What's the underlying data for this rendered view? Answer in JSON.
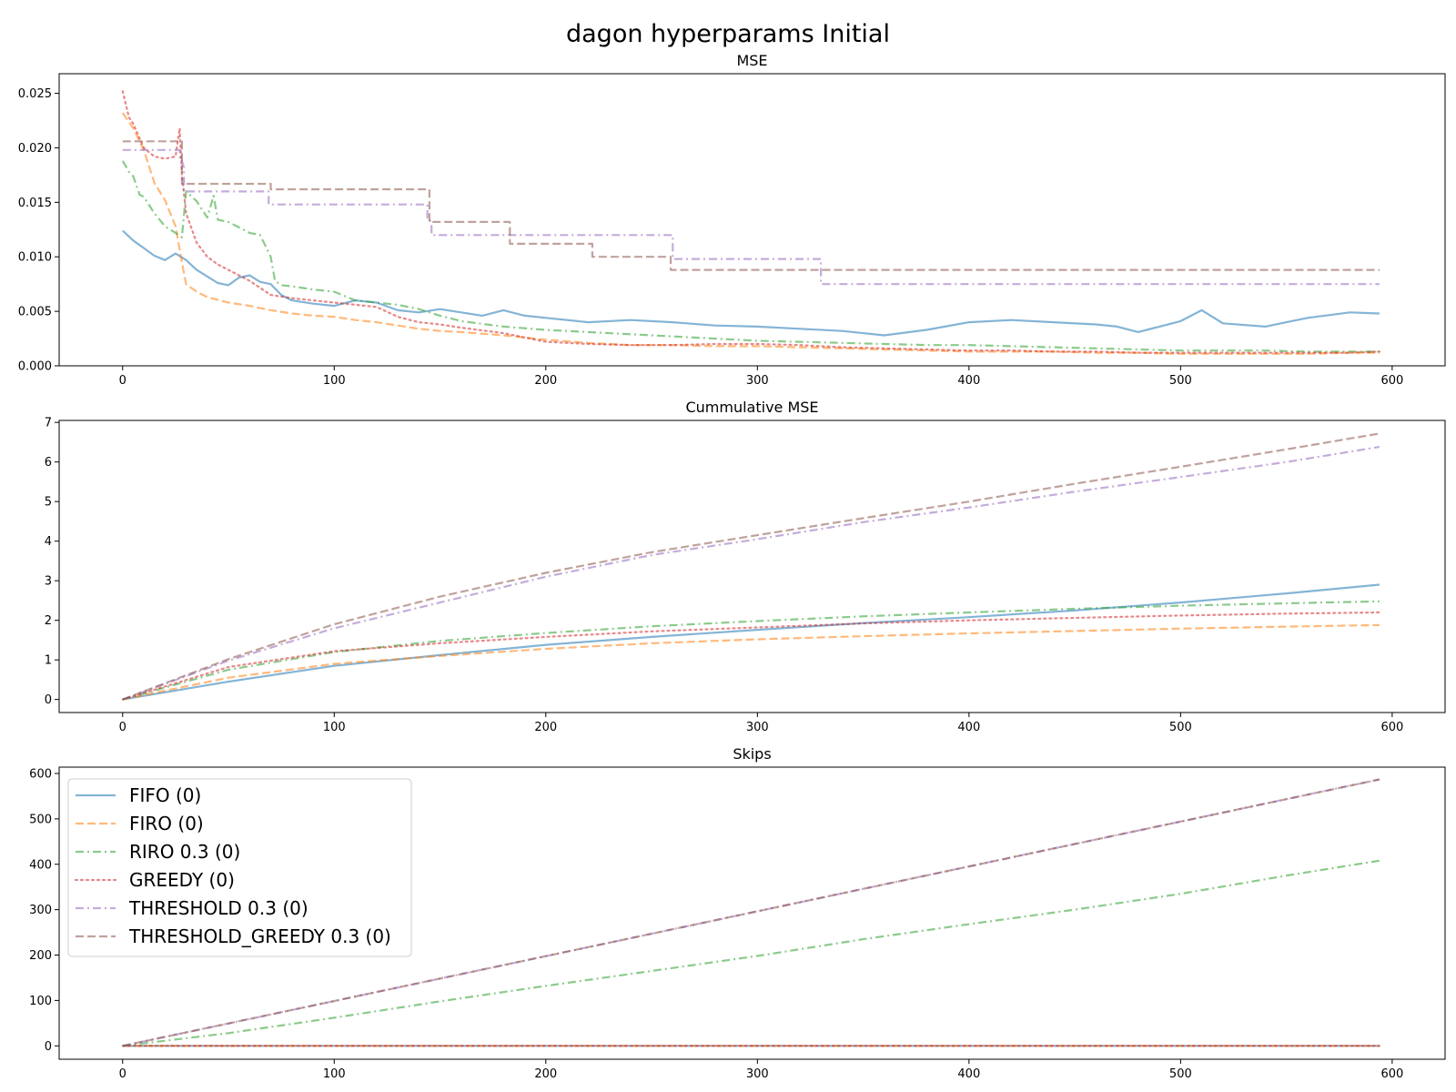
{
  "figure": {
    "title": "dagon hyperparams  Initial"
  },
  "colors": {
    "FIFO": "#1f77b4",
    "FIRO": "#ff7f0e",
    "RIRO": "#2ca02c",
    "GREEDY": "#d62728",
    "THRESHOLD": "#9467bd",
    "THRESHOLD_GREEDY": "#8c564b"
  },
  "chart_data": [
    {
      "type": "line",
      "title": "MSE",
      "xlabel": "",
      "ylabel": "",
      "xlim": [
        -30,
        625
      ],
      "ylim": [
        0,
        0.0268
      ],
      "xticks": [
        0,
        100,
        200,
        300,
        400,
        500,
        600
      ],
      "xtick_labels": [
        "0",
        "100",
        "200",
        "300",
        "400",
        "500",
        "600"
      ],
      "yticks": [
        0,
        0.005,
        0.01,
        0.015,
        0.02,
        0.025
      ],
      "ytick_labels": [
        "0.000",
        "0.005",
        "0.010",
        "0.015",
        "0.020",
        "0.025"
      ],
      "grid": false,
      "series": [
        {
          "name": "FIFO (0)",
          "style": "solid",
          "color_key": "FIFO",
          "x": [
            0,
            5,
            10,
            15,
            20,
            25,
            30,
            35,
            40,
            45,
            50,
            55,
            60,
            65,
            70,
            75,
            80,
            90,
            100,
            110,
            120,
            130,
            140,
            150,
            160,
            170,
            180,
            190,
            200,
            220,
            240,
            260,
            280,
            300,
            320,
            340,
            360,
            380,
            400,
            420,
            440,
            460,
            470,
            480,
            500,
            510,
            520,
            540,
            560,
            580,
            594
          ],
          "y": [
            0.0124,
            0.0115,
            0.0108,
            0.0101,
            0.0097,
            0.0103,
            0.0097,
            0.0088,
            0.0082,
            0.0076,
            0.0074,
            0.0081,
            0.0083,
            0.0077,
            0.0075,
            0.0065,
            0.006,
            0.0057,
            0.0055,
            0.006,
            0.0058,
            0.0051,
            0.0049,
            0.0052,
            0.0049,
            0.0046,
            0.0051,
            0.0046,
            0.0044,
            0.004,
            0.0042,
            0.004,
            0.0037,
            0.0036,
            0.0034,
            0.0032,
            0.0028,
            0.0033,
            0.004,
            0.0042,
            0.004,
            0.0038,
            0.0036,
            0.0031,
            0.0041,
            0.0051,
            0.0039,
            0.0036,
            0.0044,
            0.0049,
            0.0048
          ]
        },
        {
          "name": "FIRO (0)",
          "style": "dashed",
          "color_key": "FIRO",
          "x": [
            0,
            5,
            10,
            15,
            20,
            25,
            28,
            30,
            35,
            40,
            50,
            60,
            70,
            80,
            90,
            100,
            110,
            120,
            130,
            140,
            150,
            160,
            180,
            200,
            220,
            240,
            260,
            280,
            300,
            320,
            340,
            360,
            380,
            400,
            420,
            440,
            460,
            480,
            500,
            520,
            540,
            560,
            580,
            594
          ],
          "y": [
            0.0232,
            0.0218,
            0.0198,
            0.0168,
            0.0152,
            0.0128,
            0.0095,
            0.0075,
            0.0068,
            0.0063,
            0.0058,
            0.0055,
            0.0051,
            0.0048,
            0.0046,
            0.0045,
            0.0042,
            0.004,
            0.0037,
            0.0034,
            0.0032,
            0.0031,
            0.0028,
            0.0024,
            0.0021,
            0.0019,
            0.0019,
            0.0018,
            0.0018,
            0.0017,
            0.0016,
            0.0015,
            0.0014,
            0.0013,
            0.0013,
            0.0013,
            0.0012,
            0.0012,
            0.0011,
            0.0011,
            0.0011,
            0.0011,
            0.0012,
            0.0012
          ]
        },
        {
          "name": "RIRO 0.3 (0)",
          "style": "dashdot",
          "color_key": "RIRO",
          "x": [
            0,
            3,
            5,
            8,
            10,
            15,
            20,
            25,
            28,
            30,
            35,
            40,
            43,
            45,
            50,
            55,
            60,
            65,
            70,
            72,
            75,
            80,
            90,
            100,
            110,
            120,
            130,
            140,
            150,
            160,
            180,
            200,
            220,
            240,
            260,
            280,
            300,
            320,
            340,
            360,
            380,
            400,
            420,
            440,
            460,
            480,
            500,
            520,
            540,
            560,
            580,
            594
          ],
          "y": [
            0.0188,
            0.0178,
            0.0174,
            0.0157,
            0.0155,
            0.014,
            0.0128,
            0.0122,
            0.0118,
            0.016,
            0.0151,
            0.0136,
            0.0156,
            0.0134,
            0.0132,
            0.0127,
            0.0122,
            0.012,
            0.01,
            0.0078,
            0.0074,
            0.0073,
            0.007,
            0.0068,
            0.006,
            0.0058,
            0.0056,
            0.0052,
            0.0046,
            0.0041,
            0.0036,
            0.0033,
            0.0031,
            0.0029,
            0.0027,
            0.0025,
            0.0023,
            0.0022,
            0.0021,
            0.002,
            0.0019,
            0.0019,
            0.0018,
            0.0017,
            0.0016,
            0.0015,
            0.0014,
            0.0014,
            0.0014,
            0.0013,
            0.0013,
            0.0013
          ]
        },
        {
          "name": "GREEDY (0)",
          "style": "dotted",
          "color_key": "GREEDY",
          "x": [
            0,
            3,
            5,
            10,
            15,
            20,
            25,
            27,
            28,
            30,
            35,
            40,
            45,
            50,
            60,
            70,
            80,
            90,
            100,
            110,
            120,
            130,
            140,
            150,
            160,
            180,
            200,
            220,
            240,
            260,
            280,
            300,
            320,
            340,
            360,
            380,
            400,
            420,
            440,
            460,
            480,
            500,
            520,
            540,
            560,
            580,
            594
          ],
          "y": [
            0.0252,
            0.0228,
            0.0222,
            0.02,
            0.0192,
            0.019,
            0.0192,
            0.0218,
            0.0175,
            0.014,
            0.0113,
            0.01,
            0.0093,
            0.0088,
            0.0078,
            0.0065,
            0.0062,
            0.006,
            0.0058,
            0.0056,
            0.0054,
            0.0045,
            0.004,
            0.0038,
            0.0035,
            0.003,
            0.0022,
            0.002,
            0.0019,
            0.0019,
            0.002,
            0.002,
            0.0019,
            0.0017,
            0.0016,
            0.0015,
            0.0014,
            0.0014,
            0.0013,
            0.0013,
            0.0012,
            0.0012,
            0.0012,
            0.0012,
            0.0012,
            0.0012,
            0.0013
          ]
        },
        {
          "name": "THRESHOLD 0.3 (0)",
          "style": "dashdot",
          "color_key": "THRESHOLD",
          "x": [
            0,
            27,
            27,
            28,
            29,
            29,
            69,
            69,
            144,
            144,
            145,
            146,
            146,
            260,
            260,
            330,
            330,
            594
          ],
          "y": [
            0.0198,
            0.0198,
            0.0188,
            0.0188,
            0.0182,
            0.016,
            0.016,
            0.0148,
            0.0148,
            0.0136,
            0.0136,
            0.0128,
            0.012,
            0.012,
            0.0098,
            0.0098,
            0.0075,
            0.0075
          ]
        },
        {
          "name": "THRESHOLD_GREEDY 0.3 (0)",
          "style": "dashed",
          "color_key": "THRESHOLD_GREEDY",
          "x": [
            0,
            28,
            28,
            70,
            70,
            145,
            145,
            183,
            183,
            222,
            222,
            259,
            259,
            594
          ],
          "y": [
            0.0206,
            0.0206,
            0.0167,
            0.0167,
            0.0162,
            0.0162,
            0.0132,
            0.0132,
            0.0112,
            0.0112,
            0.01,
            0.01,
            0.0088,
            0.0088
          ]
        }
      ]
    },
    {
      "type": "line",
      "title": "Cummulative MSE",
      "xlabel": "",
      "ylabel": "",
      "xlim": [
        -30,
        625
      ],
      "ylim": [
        -0.33,
        7.05
      ],
      "xticks": [
        0,
        100,
        200,
        300,
        400,
        500,
        600
      ],
      "xtick_labels": [
        "0",
        "100",
        "200",
        "300",
        "400",
        "500",
        "600"
      ],
      "yticks": [
        0,
        1,
        2,
        3,
        4,
        5,
        6,
        7
      ],
      "ytick_labels": [
        "0",
        "1",
        "2",
        "3",
        "4",
        "5",
        "6",
        "7"
      ],
      "grid": false,
      "series": [
        {
          "name": "FIFO (0)",
          "style": "solid",
          "color_key": "FIFO",
          "x": [
            0,
            50,
            100,
            150,
            200,
            250,
            300,
            350,
            400,
            450,
            500,
            550,
            594
          ],
          "y": [
            0,
            0.45,
            0.85,
            1.12,
            1.38,
            1.58,
            1.76,
            1.93,
            2.08,
            2.25,
            2.45,
            2.68,
            2.9
          ]
        },
        {
          "name": "FIRO (0)",
          "style": "dashed",
          "color_key": "FIRO",
          "x": [
            0,
            50,
            100,
            150,
            200,
            250,
            300,
            350,
            400,
            450,
            500,
            550,
            594
          ],
          "y": [
            0,
            0.55,
            0.9,
            1.1,
            1.28,
            1.42,
            1.52,
            1.6,
            1.67,
            1.73,
            1.79,
            1.84,
            1.88
          ]
        },
        {
          "name": "RIRO 0.3 (0)",
          "style": "dashdot",
          "color_key": "RIRO",
          "x": [
            0,
            50,
            100,
            150,
            200,
            250,
            300,
            350,
            400,
            450,
            500,
            550,
            594
          ],
          "y": [
            0,
            0.75,
            1.2,
            1.48,
            1.68,
            1.85,
            1.98,
            2.1,
            2.2,
            2.29,
            2.37,
            2.43,
            2.48
          ]
        },
        {
          "name": "GREEDY (0)",
          "style": "dotted",
          "color_key": "GREEDY",
          "x": [
            0,
            50,
            100,
            150,
            200,
            250,
            300,
            350,
            400,
            450,
            500,
            550,
            594
          ],
          "y": [
            0,
            0.82,
            1.22,
            1.42,
            1.58,
            1.72,
            1.82,
            1.92,
            2.0,
            2.06,
            2.12,
            2.17,
            2.2
          ]
        },
        {
          "name": "THRESHOLD 0.3 (0)",
          "style": "dashdot",
          "color_key": "THRESHOLD",
          "x": [
            0,
            50,
            100,
            150,
            200,
            250,
            300,
            350,
            400,
            450,
            500,
            550,
            594
          ],
          "y": [
            0,
            0.98,
            1.8,
            2.45,
            3.1,
            3.65,
            4.05,
            4.48,
            4.85,
            5.25,
            5.62,
            6.0,
            6.38
          ]
        },
        {
          "name": "THRESHOLD_GREEDY 0.3 (0)",
          "style": "dashed",
          "color_key": "THRESHOLD_GREEDY",
          "x": [
            0,
            50,
            100,
            150,
            200,
            250,
            300,
            350,
            400,
            450,
            500,
            550,
            594
          ],
          "y": [
            0,
            1.02,
            1.9,
            2.6,
            3.2,
            3.72,
            4.15,
            4.58,
            5.0,
            5.45,
            5.88,
            6.32,
            6.72
          ]
        }
      ]
    },
    {
      "type": "line",
      "title": "Skips",
      "xlabel": "",
      "ylabel": "",
      "xlim": [
        -30,
        625
      ],
      "ylim": [
        -29.5,
        614
      ],
      "xticks": [
        0,
        100,
        200,
        300,
        400,
        500,
        600
      ],
      "xtick_labels": [
        "0",
        "100",
        "200",
        "300",
        "400",
        "500",
        "600"
      ],
      "yticks": [
        0,
        100,
        200,
        300,
        400,
        500,
        600
      ],
      "ytick_labels": [
        "0",
        "100",
        "200",
        "300",
        "400",
        "500",
        "600"
      ],
      "grid": false,
      "legend_position": "upper-left",
      "series": [
        {
          "name": "FIFO (0)",
          "style": "solid",
          "color_key": "FIFO",
          "x": [
            0,
            594
          ],
          "y": [
            0,
            0
          ]
        },
        {
          "name": "FIRO (0)",
          "style": "dashed",
          "color_key": "FIRO",
          "x": [
            0,
            594
          ],
          "y": [
            0,
            0
          ]
        },
        {
          "name": "RIRO 0.3 (0)",
          "style": "dashdot",
          "color_key": "RIRO",
          "x": [
            0,
            50,
            100,
            150,
            200,
            250,
            300,
            350,
            400,
            450,
            500,
            550,
            594
          ],
          "y": [
            0,
            28,
            62,
            98,
            132,
            165,
            198,
            235,
            268,
            300,
            335,
            375,
            408
          ]
        },
        {
          "name": "GREEDY (0)",
          "style": "dotted",
          "color_key": "GREEDY",
          "x": [
            0,
            594
          ],
          "y": [
            0,
            0
          ]
        },
        {
          "name": "THRESHOLD 0.3 (0)",
          "style": "dashdot",
          "color_key": "THRESHOLD",
          "x": [
            0,
            594
          ],
          "y": [
            0,
            587
          ]
        },
        {
          "name": "THRESHOLD_GREEDY 0.3 (0)",
          "style": "dashed",
          "color_key": "THRESHOLD_GREEDY",
          "x": [
            0,
            594
          ],
          "y": [
            0,
            587
          ]
        }
      ]
    }
  ]
}
